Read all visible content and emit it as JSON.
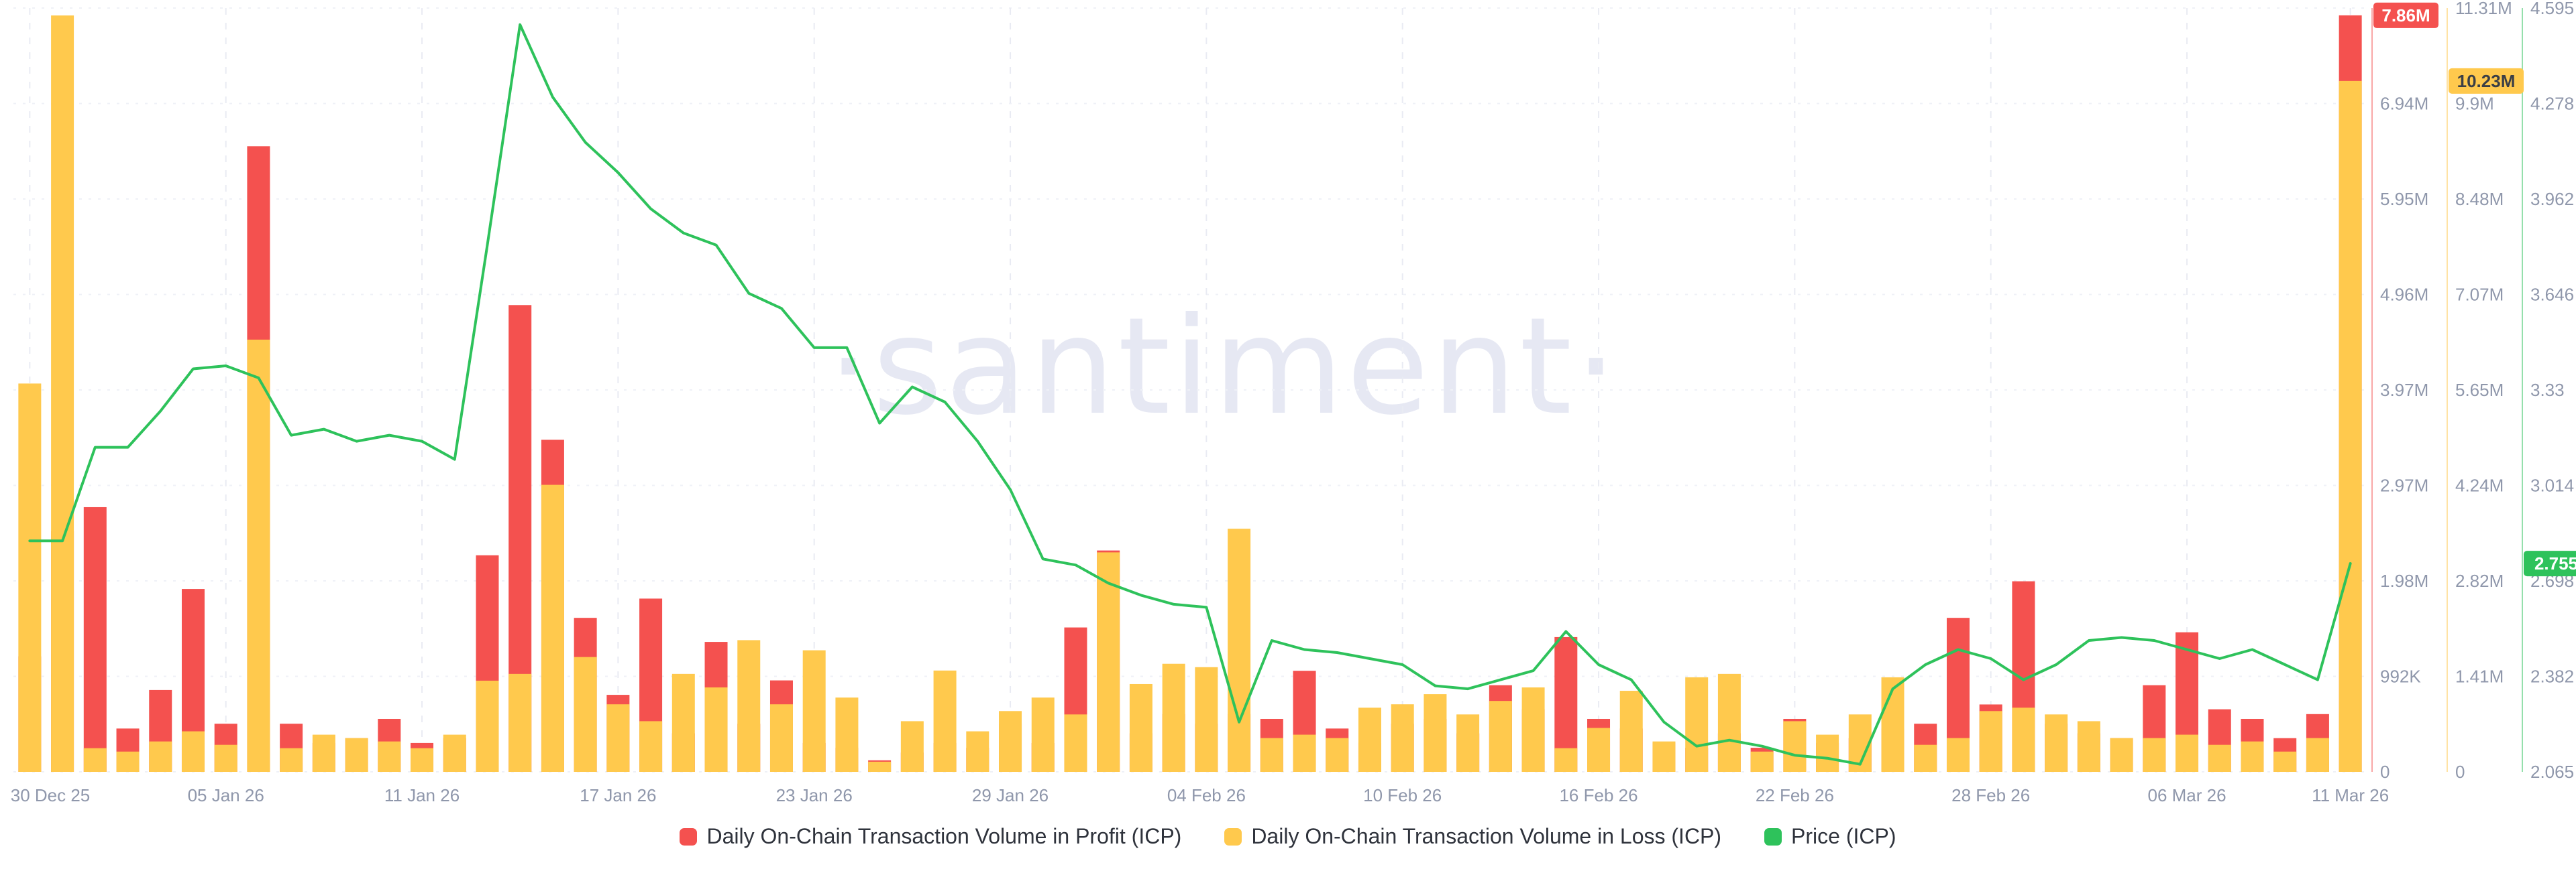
{
  "watermark": "·santiment·",
  "legend": [
    {
      "label": "Daily On-Chain Transaction Volume in Profit (ICP)",
      "color": "#f4514f"
    },
    {
      "label": "Daily On-Chain Transaction Volume in Loss (ICP)",
      "color": "#ffc94d"
    },
    {
      "label": "Price (ICP)",
      "color": "#2ec25b"
    }
  ],
  "chart_data": {
    "type": "bar+line",
    "title": "",
    "legend_position": "bottom",
    "grid": true,
    "x": [
      "30 Dec 25",
      "31 Dec 25",
      "01 Jan 26",
      "02 Jan 26",
      "03 Jan 26",
      "04 Jan 26",
      "05 Jan 26",
      "06 Jan 26",
      "07 Jan 26",
      "08 Jan 26",
      "09 Jan 26",
      "10 Jan 26",
      "11 Jan 26",
      "12 Jan 26",
      "13 Jan 26",
      "14 Jan 26",
      "15 Jan 26",
      "16 Jan 26",
      "17 Jan 26",
      "18 Jan 26",
      "19 Jan 26",
      "20 Jan 26",
      "21 Jan 26",
      "22 Jan 26",
      "23 Jan 26",
      "24 Jan 26",
      "25 Jan 26",
      "26 Jan 26",
      "27 Jan 26",
      "28 Jan 26",
      "29 Jan 26",
      "30 Jan 26",
      "31 Jan 26",
      "01 Feb 26",
      "02 Feb 26",
      "03 Feb 26",
      "04 Feb 26",
      "05 Feb 26",
      "06 Feb 26",
      "07 Feb 26",
      "08 Feb 26",
      "09 Feb 26",
      "10 Feb 26",
      "11 Feb 26",
      "12 Feb 26",
      "13 Feb 26",
      "14 Feb 26",
      "15 Feb 26",
      "16 Feb 26",
      "17 Feb 26",
      "18 Feb 26",
      "19 Feb 26",
      "20 Feb 26",
      "21 Feb 26",
      "22 Feb 26",
      "23 Feb 26",
      "24 Feb 26",
      "25 Feb 26",
      "26 Feb 26",
      "27 Feb 26",
      "28 Feb 26",
      "01 Mar 26",
      "02 Mar 26",
      "03 Mar 26",
      "04 Mar 26",
      "05 Mar 26",
      "06 Mar 26",
      "07 Mar 26",
      "08 Mar 26",
      "09 Mar 26",
      "10 Mar 26",
      "11 Mar 26"
    ],
    "x_tick_labels": [
      "30 Dec 25",
      "05 Jan 26",
      "11 Jan 26",
      "17 Jan 26",
      "23 Jan 26",
      "29 Jan 26",
      "04 Feb 26",
      "10 Feb 26",
      "16 Feb 26",
      "22 Feb 26",
      "28 Feb 26",
      "06 Mar 26",
      "11 Mar 26"
    ],
    "series": [
      {
        "name": "Daily On-Chain Transaction Volume in Profit (ICP)",
        "type": "bar",
        "axis": "profit",
        "color": "#f4514f",
        "unit": "M ICP",
        "values": [
          1.2,
          2.5,
          2.75,
          0.45,
          0.85,
          1.9,
          0.5,
          6.5,
          0.5,
          0.3,
          0.35,
          0.55,
          0.3,
          0.35,
          2.25,
          4.85,
          3.45,
          1.6,
          0.8,
          1.8,
          0.4,
          1.35,
          0.5,
          0.95,
          0.3,
          0.25,
          0.12,
          0.2,
          0.3,
          0.25,
          0.5,
          0.3,
          1.5,
          2.3,
          0.4,
          0.6,
          0.5,
          0.6,
          0.55,
          1.05,
          0.45,
          0.3,
          0.5,
          0.55,
          0.4,
          0.9,
          0.65,
          1.4,
          0.55,
          0.45,
          0.3,
          0.25,
          0.4,
          0.25,
          0.55,
          0.3,
          0.35,
          0.45,
          0.5,
          1.6,
          0.7,
          1.98,
          0.5,
          0.4,
          0.35,
          0.9,
          1.45,
          0.65,
          0.55,
          0.35,
          0.6,
          7.86
        ]
      },
      {
        "name": "Daily On-Chain Transaction Volume in Loss (ICP)",
        "type": "bar",
        "axis": "loss",
        "color": "#ffc94d",
        "unit": "M ICP",
        "values": [
          5.75,
          11.2,
          0.35,
          0.3,
          0.45,
          0.6,
          0.4,
          6.4,
          0.35,
          0.55,
          0.5,
          0.45,
          0.35,
          0.55,
          1.35,
          1.45,
          4.25,
          1.7,
          1.0,
          0.75,
          1.45,
          1.25,
          1.95,
          1.0,
          1.8,
          1.1,
          0.15,
          0.75,
          1.5,
          0.6,
          0.9,
          1.1,
          0.85,
          3.25,
          1.3,
          1.6,
          1.55,
          3.6,
          0.5,
          0.55,
          0.5,
          0.95,
          1.0,
          1.15,
          0.85,
          1.05,
          1.25,
          0.35,
          0.65,
          1.2,
          0.45,
          1.4,
          1.45,
          0.3,
          0.75,
          0.55,
          0.85,
          1.4,
          0.4,
          0.5,
          0.9,
          0.95,
          0.85,
          0.75,
          0.5,
          0.5,
          0.55,
          0.4,
          0.45,
          0.3,
          0.5,
          10.23
        ]
      },
      {
        "name": "Price (ICP)",
        "type": "line",
        "axis": "price",
        "color": "#2ec25b",
        "unit": "USD",
        "values": [
          2.83,
          2.83,
          3.14,
          3.14,
          3.26,
          3.4,
          3.41,
          3.37,
          3.18,
          3.2,
          3.16,
          3.18,
          3.16,
          3.1,
          3.81,
          4.54,
          4.3,
          4.15,
          4.05,
          3.93,
          3.85,
          3.81,
          3.65,
          3.6,
          3.47,
          3.47,
          3.22,
          3.34,
          3.29,
          3.16,
          3.0,
          2.77,
          2.75,
          2.69,
          2.65,
          2.62,
          2.61,
          2.23,
          2.5,
          2.47,
          2.46,
          2.44,
          2.42,
          2.35,
          2.34,
          2.37,
          2.4,
          2.53,
          2.42,
          2.37,
          2.23,
          2.15,
          2.17,
          2.15,
          2.12,
          2.11,
          2.09,
          2.34,
          2.42,
          2.47,
          2.44,
          2.37,
          2.42,
          2.5,
          2.51,
          2.5,
          2.47,
          2.44,
          2.47,
          2.42,
          2.37,
          2.755
        ]
      }
    ],
    "axes": {
      "profit": {
        "position": "right",
        "color": "#f4514f",
        "min": 0,
        "max_m": 7.936,
        "tick_labels": [
          "0",
          "992K",
          "1.98M",
          "2.97M",
          "3.97M",
          "4.96M",
          "5.95M",
          "6.94M"
        ],
        "last_value_badge": "7.86M",
        "last_value_m": 7.86
      },
      "loss": {
        "position": "right",
        "color": "#ffc94d",
        "min": 0,
        "max_m": 11.31,
        "tick_labels": [
          "0",
          "1.41M",
          "2.82M",
          "4.24M",
          "5.65M",
          "7.07M",
          "8.48M",
          "9.9M",
          "11.31M"
        ],
        "last_value_badge": "10.23M",
        "last_value_m": 10.23
      },
      "price": {
        "position": "right",
        "color": "#2ec25b",
        "min": 2.065,
        "max": 4.595,
        "tick_labels": [
          "2.065",
          "2.382",
          "2.698",
          "3.014",
          "3.33",
          "3.646",
          "3.962",
          "4.278",
          "4.595"
        ],
        "last_value_badge": "2.755",
        "last_value": 2.755
      }
    }
  }
}
